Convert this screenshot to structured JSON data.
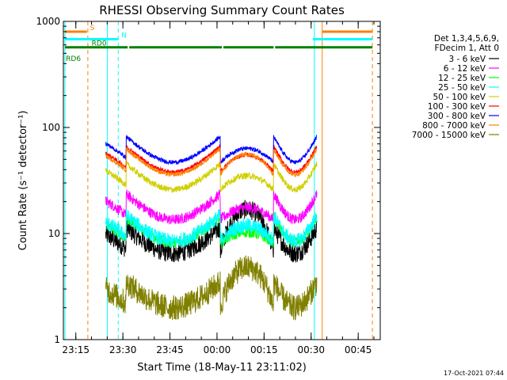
{
  "chart_data": {
    "type": "line",
    "title": "RHESSI Observing Summary Count Rates",
    "xlabel": "Start Time (18-May-11 23:11:02)",
    "ylabel": "Count Rate (s⁻¹ detector⁻¹)",
    "x_unit": "minutes from 23:11:02",
    "y_scale": "log",
    "ylim": [
      1,
      1000
    ],
    "xlim": [
      0,
      101
    ],
    "x_ticks": [
      {
        "t": 3.97,
        "label": "23:15"
      },
      {
        "t": 18.97,
        "label": "23:30"
      },
      {
        "t": 33.97,
        "label": "23:45"
      },
      {
        "t": 48.97,
        "label": "00:00"
      },
      {
        "t": 63.97,
        "label": "00:15"
      },
      {
        "t": 78.97,
        "label": "00:30"
      },
      {
        "t": 93.97,
        "label": "00:45"
      }
    ],
    "y_ticks": [
      {
        "v": 1,
        "label": "1"
      },
      {
        "v": 10,
        "label": "10"
      },
      {
        "v": 100,
        "label": "100"
      },
      {
        "v": 1000,
        "label": "1000"
      }
    ],
    "legend": {
      "placement": "right",
      "header": [
        "Det 1,3,4,5,6,9,",
        "FDecim 1, Att 0"
      ]
    },
    "valid_interval": [
      13.5,
      80.8
    ],
    "series": [
      {
        "name": "3 - 6 keV",
        "color": "#000000",
        "base": 6.5,
        "bump": 2.6,
        "noise": 0.09
      },
      {
        "name": "6 - 12 keV",
        "color": "#ff00ff",
        "base": 13.5,
        "bump": 1.3,
        "noise": 0.05
      },
      {
        "name": "12 - 25 keV",
        "color": "#00ff00",
        "base": 8.2,
        "bump": 1.25,
        "noise": 0.05
      },
      {
        "name": "25 - 50 keV",
        "color": "#00ffff",
        "base": 8.5,
        "bump": 1.4,
        "noise": 0.07
      },
      {
        "name": "50 - 100 keV",
        "color": "#d0d000",
        "base": 26,
        "bump": 1.35,
        "noise": 0.03
      },
      {
        "name": "100 - 300 keV",
        "color": "#ff0000",
        "base": 38,
        "bump": 1.45,
        "noise": 0.02
      },
      {
        "name": "300 - 800 keV",
        "color": "#0000ff",
        "base": 47,
        "bump": 1.35,
        "noise": 0.02
      },
      {
        "name": "800 - 7000 keV",
        "color": "#ff8000",
        "base": 36,
        "bump": 1.55,
        "noise": 0.02
      },
      {
        "name": "7000 - 15000 keV",
        "color": "#808000",
        "base": 2.0,
        "bump": 2.4,
        "noise": 0.12
      }
    ],
    "flags": [
      {
        "name": "S",
        "color": "#ff8000",
        "level": 800,
        "segments": [
          [
            0.5,
            7.5
          ],
          [
            82.5,
            98.5
          ]
        ]
      },
      {
        "name": "N",
        "color": "#00ffff",
        "level": 680,
        "segments": [
          [
            0.5,
            17.5
          ],
          [
            79.5,
            98.5
          ]
        ]
      },
      {
        "name": "RD0",
        "color": "#008000",
        "level": 570,
        "segments": [
          [
            0.5,
            20.5
          ],
          [
            21,
            50.5
          ],
          [
            51,
            67
          ]
        ]
      },
      {
        "name": "RD6",
        "color": "#008000",
        "level": 520,
        "segments": [
          [
            0,
            0
          ]
        ]
      }
    ],
    "green_row2": [
      [
        67.5,
        98.5
      ]
    ],
    "vlines": [
      {
        "t": 0.5,
        "color": "#00ffff",
        "style": "solid"
      },
      {
        "t": 7.8,
        "color": "#ff8000",
        "style": "dashed"
      },
      {
        "t": 14.0,
        "color": "#00ffff",
        "style": "solid"
      },
      {
        "t": 17.5,
        "color": "#00ffff",
        "style": "dashed"
      },
      {
        "t": 80.0,
        "color": "#00ffff",
        "style": "solid"
      },
      {
        "t": 82.5,
        "color": "#ff8000",
        "style": "solid"
      },
      {
        "t": 98.5,
        "color": "#ff8000",
        "style": "dashed"
      }
    ],
    "footer": "17-Oct-2021 07:44"
  }
}
